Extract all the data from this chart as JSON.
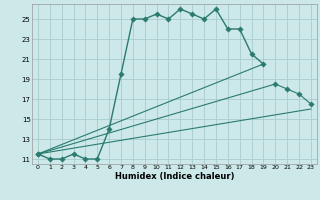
{
  "title": "",
  "xlabel": "Humidex (Indice chaleur)",
  "bg_color": "#cce8e8",
  "grid_color": "#aacccc",
  "line_color": "#2a7a70",
  "xlim": [
    -0.5,
    23.5
  ],
  "ylim": [
    10.5,
    26.5
  ],
  "yticks": [
    11,
    13,
    15,
    17,
    19,
    21,
    23,
    25
  ],
  "xticks": [
    0,
    1,
    2,
    3,
    4,
    5,
    6,
    7,
    8,
    9,
    10,
    11,
    12,
    13,
    14,
    15,
    16,
    17,
    18,
    19,
    20,
    21,
    22,
    23
  ],
  "curve1_x": [
    0,
    1,
    2,
    3,
    4,
    5,
    6,
    7,
    8,
    9,
    10,
    11,
    12,
    13,
    14,
    15,
    16,
    17,
    18,
    19
  ],
  "curve1_y": [
    11.5,
    11.0,
    11.0,
    11.5,
    11.0,
    11.0,
    14.0,
    19.5,
    25.0,
    25.0,
    25.5,
    25.0,
    26.0,
    25.5,
    25.0,
    26.0,
    24.0,
    24.0,
    21.5,
    20.5
  ],
  "fan_line1_x": [
    0,
    23
  ],
  "fan_line1_y": [
    11.5,
    16.0
  ],
  "fan_line2_x": [
    0,
    19
  ],
  "fan_line2_y": [
    11.5,
    20.5
  ],
  "fan_line3_x": [
    0,
    20,
    21,
    22,
    23
  ],
  "fan_line3_y": [
    11.5,
    18.5,
    18.0,
    17.5,
    16.5
  ]
}
